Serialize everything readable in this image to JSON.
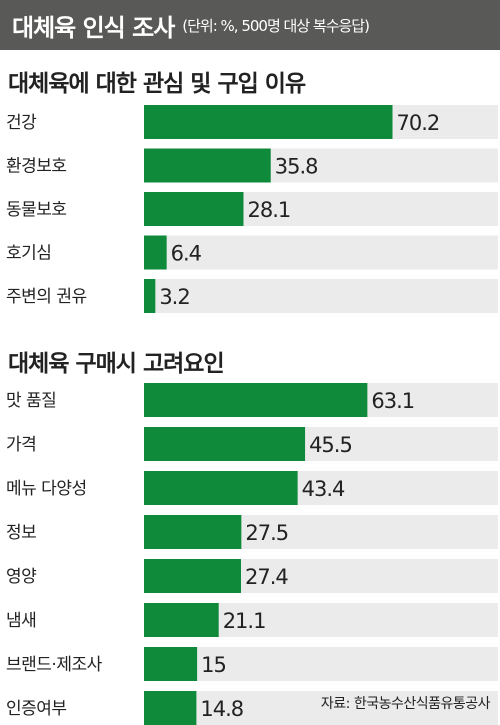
{
  "title": {
    "main": "대체육 인식 조사",
    "note": "(단위: %, 500명 대상 복수응답)"
  },
  "source": "자료: 한국농수산식품유통공사",
  "colors": {
    "bar": "#0f8a3b",
    "track": "#ebebeb",
    "header_bg": "#595a57"
  },
  "chart_data": [
    {
      "type": "bar",
      "orientation": "horizontal",
      "title": "대체육에 대한 관심 및 구입 이유",
      "categories": [
        "건강",
        "환경보호",
        "동물보호",
        "호기심",
        "주변의 권유"
      ],
      "values": [
        70.2,
        35.8,
        28.1,
        6.4,
        3.2
      ],
      "value_labels": [
        "70.2",
        "35.8",
        "28.1",
        "6.4",
        "3.2"
      ],
      "xlim": [
        0,
        100
      ]
    },
    {
      "type": "bar",
      "orientation": "horizontal",
      "title": "대체육 구매시 고려요인",
      "categories": [
        "맛 품질",
        "가격",
        "메뉴 다양성",
        "정보",
        "영양",
        "냄새",
        "브랜드·제조사",
        "인증여부"
      ],
      "values": [
        63.1,
        45.5,
        43.4,
        27.5,
        27.4,
        21.1,
        15,
        14.8
      ],
      "value_labels": [
        "63.1",
        "45.5",
        "43.4",
        "27.5",
        "27.4",
        "21.1",
        "15",
        "14.8"
      ],
      "xlim": [
        0,
        100
      ]
    }
  ]
}
